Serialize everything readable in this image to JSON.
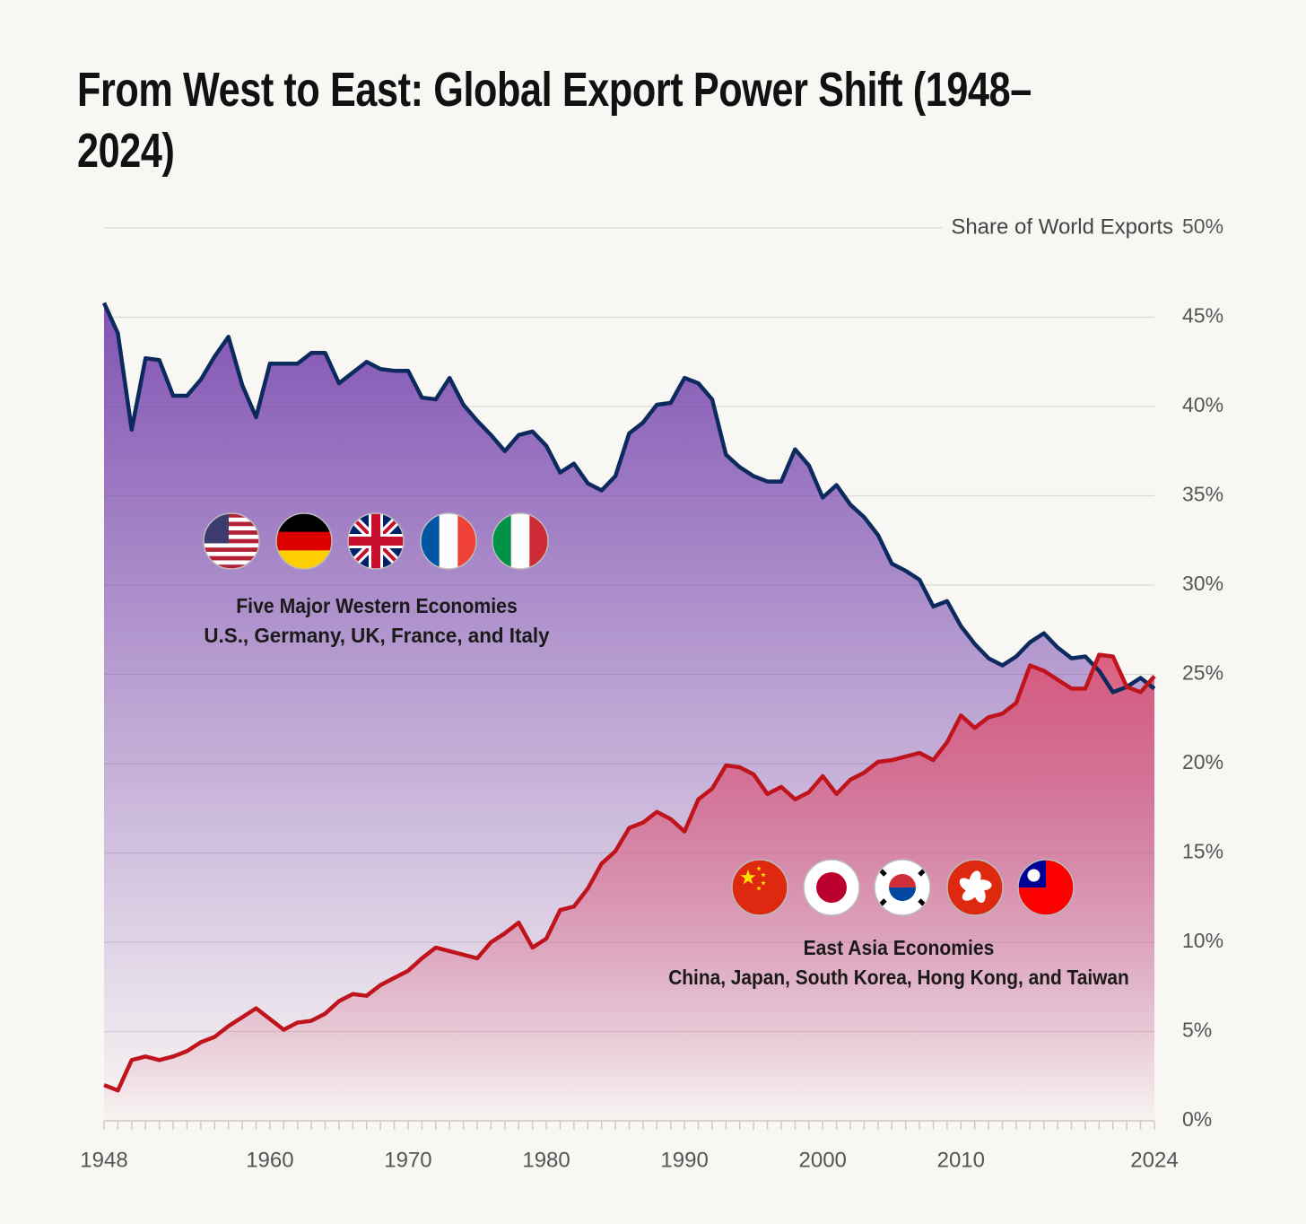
{
  "chart_data": {
    "type": "area",
    "title": "From West to East: Global Export Power Shift (1948–2024)",
    "y_axis_label": "Share of World Exports",
    "x": [
      1948,
      1949,
      1950,
      1951,
      1952,
      1953,
      1954,
      1955,
      1956,
      1957,
      1958,
      1959,
      1960,
      1961,
      1962,
      1963,
      1964,
      1965,
      1966,
      1967,
      1968,
      1969,
      1970,
      1971,
      1972,
      1973,
      1974,
      1975,
      1976,
      1977,
      1978,
      1979,
      1980,
      1981,
      1982,
      1983,
      1984,
      1985,
      1986,
      1987,
      1988,
      1989,
      1990,
      1991,
      1992,
      1993,
      1994,
      1995,
      1996,
      1997,
      1998,
      1999,
      2000,
      2001,
      2002,
      2003,
      2004,
      2005,
      2006,
      2007,
      2008,
      2009,
      2010,
      2011,
      2012,
      2013,
      2014,
      2015,
      2016,
      2017,
      2018,
      2019,
      2020,
      2021,
      2022,
      2023,
      2024
    ],
    "series": [
      {
        "name": "Five Major Western Economies",
        "color": "#0d2a5e",
        "fill": "#7b4bb0",
        "values": [
          45.8,
          44.1,
          38.7,
          42.7,
          42.6,
          40.6,
          40.6,
          41.5,
          42.8,
          43.9,
          41.2,
          39.4,
          42.4,
          42.4,
          42.4,
          43.0,
          43.0,
          41.3,
          41.9,
          42.5,
          42.1,
          42.0,
          42.0,
          40.5,
          40.4,
          41.6,
          40.1,
          39.2,
          38.4,
          37.5,
          38.4,
          38.6,
          37.8,
          36.3,
          36.8,
          35.7,
          35.3,
          36.1,
          38.5,
          39.1,
          40.1,
          40.2,
          41.6,
          41.3,
          40.4,
          37.3,
          36.6,
          36.1,
          35.8,
          35.8,
          37.6,
          36.7,
          34.9,
          35.6,
          34.5,
          33.8,
          32.8,
          31.2,
          30.8,
          30.3,
          28.8,
          29.1,
          27.7,
          26.7,
          25.9,
          25.5,
          26.0,
          26.8,
          27.3,
          26.5,
          25.9,
          26.0,
          25.2,
          24.0,
          24.3,
          24.8,
          24.2
        ]
      },
      {
        "name": "East Asia Economies",
        "color": "#c0141c",
        "fill": "#d9577a",
        "values": [
          2.0,
          1.7,
          3.4,
          3.6,
          3.4,
          3.6,
          3.9,
          4.4,
          4.7,
          5.3,
          5.8,
          6.3,
          5.7,
          5.1,
          5.5,
          5.6,
          6.0,
          6.7,
          7.1,
          7.0,
          7.6,
          8.0,
          8.4,
          9.1,
          9.7,
          9.5,
          9.3,
          9.1,
          10.0,
          10.5,
          11.1,
          9.7,
          10.2,
          11.8,
          12.0,
          13.0,
          14.4,
          15.1,
          16.4,
          16.7,
          17.3,
          16.9,
          16.2,
          18.0,
          18.6,
          19.9,
          19.8,
          19.4,
          18.3,
          18.7,
          18.0,
          18.4,
          19.3,
          18.3,
          19.1,
          19.5,
          20.1,
          20.2,
          20.4,
          20.6,
          20.2,
          21.2,
          22.7,
          22.0,
          22.6,
          22.8,
          23.4,
          25.5,
          25.2,
          24.7,
          24.2,
          24.2,
          26.1,
          26.0,
          24.3,
          24.0,
          24.9
        ]
      }
    ],
    "annotations": [
      {
        "title": "Five Major Western Economies",
        "text": "U.S., Germany, UK, France, and Italy"
      },
      {
        "title": "East Asia Economies",
        "text": "China, Japan, South Korea, Hong Kong, and Taiwan"
      }
    ],
    "xlim": [
      1948,
      2024
    ],
    "xticks": [
      1948,
      1960,
      1970,
      1980,
      1990,
      2000,
      2010,
      2024
    ],
    "ylim": [
      0,
      50
    ],
    "yticks": [
      {
        "value": 0,
        "label": "0%"
      },
      {
        "value": 5,
        "label": "5%"
      },
      {
        "value": 10,
        "label": "10%"
      },
      {
        "value": 15,
        "label": "15%"
      },
      {
        "value": 20,
        "label": "20%"
      },
      {
        "value": 25,
        "label": "25%"
      },
      {
        "value": 30,
        "label": "30%"
      },
      {
        "value": 35,
        "label": "35%"
      },
      {
        "value": 40,
        "label": "40%"
      },
      {
        "value": 45,
        "label": "45%"
      },
      {
        "value": 50,
        "label": "50%"
      }
    ],
    "grid": true
  }
}
